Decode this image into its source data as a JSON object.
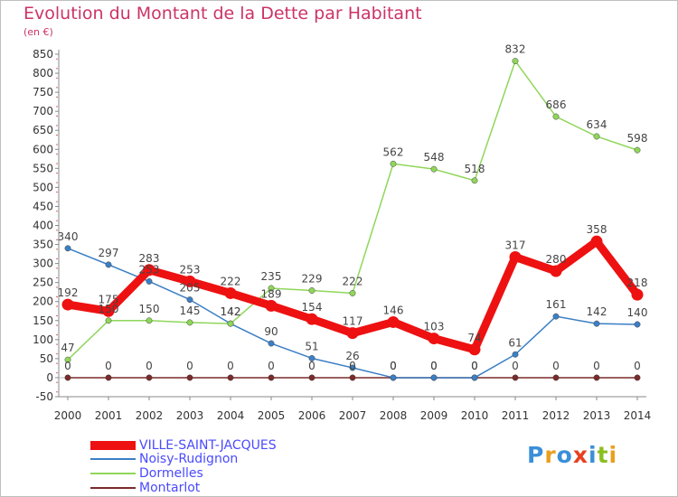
{
  "title": "Evolution du Montant de la Dette par Habitant",
  "unit": "(en €)",
  "logo": {
    "text": "Proxiti",
    "colors": [
      "#3a8fd8",
      "#e8a020",
      "#3a8fd8",
      "#e84020",
      "#3a8fd8",
      "#8abf20",
      "#e8a020"
    ]
  },
  "chart_data": {
    "type": "line",
    "x": [
      "2000",
      "2001",
      "2002",
      "2003",
      "2004",
      "2005",
      "2006",
      "2007",
      "2008",
      "2009",
      "2010",
      "2011",
      "2012",
      "2013",
      "2014"
    ],
    "ylim": [
      -50,
      850
    ],
    "yticks": [
      -50,
      0,
      50,
      100,
      150,
      200,
      250,
      300,
      350,
      400,
      450,
      500,
      550,
      600,
      650,
      700,
      750,
      800,
      850
    ],
    "grid": false,
    "legend_position": "bottom-left",
    "series": [
      {
        "name": "Montarlot",
        "color": "#7a2a2a",
        "values": [
          0,
          0,
          0,
          0,
          0,
          0,
          0,
          0,
          0,
          0,
          0,
          0,
          0,
          0,
          0
        ],
        "labels": [
          "0",
          "0",
          "0",
          "0",
          "0",
          "0",
          "0",
          "0",
          "0",
          "0",
          "0",
          "0",
          "0",
          "0",
          "0"
        ]
      },
      {
        "name": "Noisy-Rudignon",
        "color": "#3b7fc4",
        "values": [
          340,
          297,
          253,
          205,
          142,
          90,
          51,
          26,
          0,
          0,
          0,
          61,
          161,
          142,
          140
        ],
        "labels": [
          "340",
          "297",
          "253",
          "205",
          "142",
          "90",
          "51",
          "26",
          "0",
          "0",
          "0",
          "61",
          "161",
          "142",
          "140"
        ]
      },
      {
        "name": "Dormelles",
        "color": "#8fd65a",
        "values": [
          47,
          150,
          150,
          145,
          142,
          235,
          229,
          222,
          562,
          548,
          518,
          832,
          686,
          634,
          598
        ],
        "labels": [
          "47",
          "150",
          "150",
          "145",
          "142",
          "235",
          "229",
          "222",
          "562",
          "548",
          "518",
          "832",
          "686",
          "634",
          "598"
        ]
      },
      {
        "name": "VILLE-SAINT-JACQUES",
        "color": "#ee1111",
        "values": [
          192,
          175,
          283,
          253,
          222,
          189,
          154,
          117,
          146,
          103,
          74,
          317,
          280,
          358,
          218
        ],
        "labels": [
          "192",
          "175",
          "283",
          "253",
          "222",
          "189",
          "154",
          "117",
          "146",
          "103",
          "74",
          "317",
          "280",
          "358",
          "218"
        ]
      }
    ],
    "legend": [
      {
        "name": "VILLE-SAINT-JACQUES",
        "color": "#ee1111"
      },
      {
        "name": "Noisy-Rudignon",
        "color": "#3b7fc4"
      },
      {
        "name": "Dormelles",
        "color": "#8fd65a"
      },
      {
        "name": "Montarlot",
        "color": "#7a2a2a"
      }
    ]
  }
}
